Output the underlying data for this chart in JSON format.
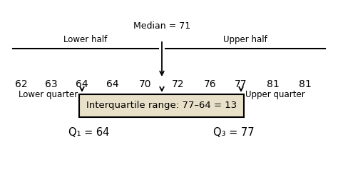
{
  "values": [
    "62",
    "63",
    "64",
    "64",
    "70",
    "72",
    "76",
    "77",
    "81",
    "81"
  ],
  "median_label": "Median = 71",
  "lower_half_label": "Lower half",
  "upper_half_label": "Upper half",
  "lower_quarter_label": "Lower quarter",
  "upper_quarter_label": "Upper quarter",
  "iqr_label": "Interquartile range: 77–64 = 13",
  "q1_label": "Q₁ = 64",
  "q3_label": "Q₃ = 77",
  "background_color": "#ffffff",
  "box_color": "#e8e0c8",
  "text_color": "#000000",
  "font_size_values": 10,
  "font_size_labels": 8.5,
  "font_size_iqr": 9.5,
  "font_size_q": 10.5,
  "font_size_median": 9
}
